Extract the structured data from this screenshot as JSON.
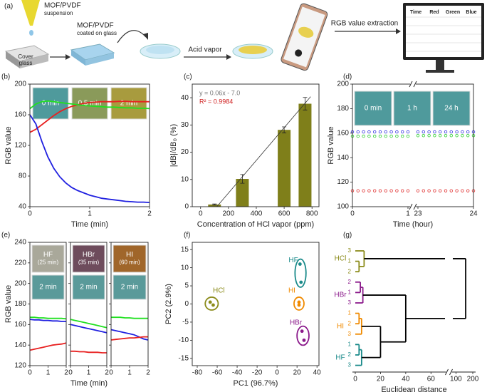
{
  "schematic": {
    "label": "(a)",
    "suspension": [
      "MOF/PVDF",
      "suspension"
    ],
    "coated": [
      "MOF/PVDF",
      "coated on glass"
    ],
    "cover_glass": [
      "Cover",
      "glass"
    ],
    "acid_vapor": "Acid vapor",
    "extraction": "RGB value extraction",
    "table_headers": [
      {
        "text": "Time",
        "color": "#222222"
      },
      {
        "text": "Red",
        "color": "#e01010"
      },
      {
        "text": "Green",
        "color": "#10a010"
      },
      {
        "text": "Blue",
        "color": "#1010e0"
      }
    ]
  },
  "chart_data": [
    {
      "type": "line",
      "label": "(b)",
      "xlabel": "Time (min)",
      "ylabel": "RGB value",
      "xlim": [
        0,
        2
      ],
      "ylim": [
        40,
        200
      ],
      "xticks": [
        0,
        1,
        2
      ],
      "yticks": [
        40,
        80,
        120,
        160,
        200
      ],
      "insets": [
        {
          "label": "0 min",
          "color": "#4f9a9c"
        },
        {
          "label": "0.5 min",
          "color": "#8a9a5a"
        },
        {
          "label": "2 min",
          "color": "#a89b3e"
        }
      ],
      "x": [
        0,
        0.1,
        0.2,
        0.3,
        0.4,
        0.5,
        0.6,
        0.7,
        0.8,
        0.9,
        1,
        1.1,
        1.2,
        1.3,
        1.4,
        1.5,
        1.6,
        1.7,
        1.8,
        1.9,
        2
      ],
      "series": [
        {
          "name": "Red",
          "color": "#e82020",
          "values": [
            137,
            141,
            147,
            153,
            159,
            164,
            168,
            171,
            173,
            175,
            176,
            176.5,
            177,
            177,
            177,
            177.5,
            177.5,
            177,
            177,
            177,
            177
          ]
        },
        {
          "name": "Green",
          "color": "#20e020",
          "values": [
            168,
            174,
            177,
            178,
            177,
            176,
            175,
            174,
            173,
            172,
            171.5,
            171,
            170.5,
            170,
            170,
            169.5,
            169,
            169,
            168.5,
            168.5,
            168
          ]
        },
        {
          "name": "Blue",
          "color": "#2020e0",
          "values": [
            160,
            148,
            125,
            105,
            90,
            79,
            71,
            65,
            61,
            58,
            55,
            53,
            51,
            50,
            49,
            48,
            47,
            46.5,
            46,
            46,
            45.5
          ]
        }
      ]
    },
    {
      "type": "bar",
      "label": "(c)",
      "xlabel": "Concentration of HCl vapor (ppm)",
      "ylabel": "|dB|/dB₀ (%)",
      "xlim": [
        -60,
        850
      ],
      "ylim": [
        0,
        45
      ],
      "xticks": [
        0,
        200,
        400,
        600,
        800
      ],
      "yticks": [
        0,
        10,
        20,
        30,
        40
      ],
      "x": [
        100,
        300,
        600,
        750
      ],
      "values": [
        0.8,
        10.2,
        28.2,
        37.8
      ],
      "errors": [
        0.2,
        1.6,
        1.1,
        2.3
      ],
      "color": "#7f7f1a",
      "fit": {
        "label": "y = 0.06x - 7.0",
        "r2_label": "R² = 0.9984",
        "r2_color": "#d02020",
        "slope": 0.06,
        "intercept": -7.0,
        "x": [
          117,
          790
        ]
      }
    },
    {
      "type": "scatter",
      "label": "(d)",
      "xlabel": "Time (hour)",
      "ylabel": "RGB value",
      "xlim": [
        0,
        24
      ],
      "xbreak": [
        1,
        23
      ],
      "ylim": [
        100,
        200
      ],
      "xticks": [
        0,
        1,
        23,
        24
      ],
      "yticks": [
        100,
        120,
        140,
        160,
        180,
        200
      ],
      "insets": [
        {
          "label": "0 min",
          "color": "#4f9a9c"
        },
        {
          "label": "1 h",
          "color": "#4f9a9c"
        },
        {
          "label": "24 h",
          "color": "#4f9a9c"
        }
      ],
      "x": [
        0,
        0.1,
        0.2,
        0.3,
        0.4,
        0.5,
        0.6,
        0.7,
        0.8,
        0.9,
        1,
        23,
        23.1,
        23.2,
        23.3,
        23.4,
        23.5,
        23.6,
        23.7,
        23.8,
        23.9,
        24
      ],
      "series": [
        {
          "name": "Blue",
          "color": "#3030e0",
          "values": [
            161,
            161,
            161,
            161,
            161,
            161,
            161,
            161,
            161,
            161,
            161,
            161,
            161,
            161,
            161,
            161,
            161,
            161,
            161,
            161,
            161,
            161
          ]
        },
        {
          "name": "Green",
          "color": "#30d030",
          "values": [
            157.5,
            157.5,
            157.5,
            157.5,
            157.5,
            157.5,
            157.5,
            157.5,
            157.5,
            157.5,
            157.5,
            158,
            158,
            158,
            158,
            158,
            158,
            158,
            158,
            158,
            158,
            158
          ]
        },
        {
          "name": "Red",
          "color": "#e03030",
          "values": [
            113,
            113,
            113,
            113,
            113,
            113,
            113,
            113,
            113,
            113,
            113,
            113,
            113,
            113,
            113,
            113,
            113,
            113,
            113,
            113,
            113,
            113
          ]
        }
      ]
    },
    {
      "type": "panels",
      "label": "(e)",
      "xlabel": "Time (min)",
      "ylabel": "RGB value",
      "xlim": [
        0,
        2
      ],
      "ylim": [
        120,
        240
      ],
      "xticks": [
        0,
        1,
        2
      ],
      "yticks": [
        120,
        140,
        160,
        180,
        200,
        220,
        240
      ],
      "x": [
        0,
        0.25,
        0.5,
        0.75,
        1,
        1.25,
        1.5,
        1.75,
        2
      ],
      "panels": [
        {
          "title": "HF",
          "subtitle": "(25 min)",
          "color": "#a9a89a",
          "after": "2 min",
          "after_color": "#5a9a9a",
          "series": [
            {
              "name": "Green",
              "color": "#20e020",
              "values": [
                167,
                167,
                166.5,
                166.5,
                166,
                166,
                166,
                166,
                165.5
              ]
            },
            {
              "name": "Blue",
              "color": "#2020e0",
              "values": [
                165,
                164.5,
                164.5,
                164,
                164,
                163.5,
                163.5,
                163,
                163
              ]
            },
            {
              "name": "Red",
              "color": "#e82020",
              "values": [
                135,
                136,
                137,
                138,
                139,
                140,
                140.5,
                141,
                142
              ]
            }
          ]
        },
        {
          "title": "HBr",
          "subtitle": "(35 min)",
          "color": "#6e4c5c",
          "after": "2 min",
          "after_color": "#5a9a9a",
          "series": [
            {
              "name": "Green",
              "color": "#20e020",
              "values": [
                165,
                164,
                163,
                162,
                161,
                160,
                159,
                158,
                157
              ]
            },
            {
              "name": "Blue",
              "color": "#2020e0",
              "values": [
                160,
                159,
                158,
                157,
                156,
                155,
                154,
                153,
                152
              ]
            },
            {
              "name": "Red",
              "color": "#e82020",
              "values": [
                134,
                134,
                133.5,
                133.5,
                133,
                133,
                133,
                132.5,
                132.5
              ]
            }
          ]
        },
        {
          "title": "HI",
          "subtitle": "(60 min)",
          "color": "#a0662a",
          "after": "2 min",
          "after_color": "#5a9a9a",
          "series": [
            {
              "name": "Green",
              "color": "#20e020",
              "values": [
                167,
                167,
                167,
                166.5,
                166.5,
                166,
                166,
                166,
                166
              ]
            },
            {
              "name": "Blue",
              "color": "#2020e0",
              "values": [
                155,
                154,
                153,
                152,
                151,
                150,
                148,
                146,
                145
              ]
            },
            {
              "name": "Red",
              "color": "#e82020",
              "values": [
                145,
                145.5,
                146,
                146.5,
                147,
                147,
                147.5,
                148,
                148
              ]
            }
          ]
        }
      ]
    },
    {
      "type": "pca",
      "label": "(f)",
      "xlabel": "PC1 (96.7%)",
      "ylabel": "PC2 (2.9%)",
      "xlim": [
        -85,
        42
      ],
      "ylim": [
        -17,
        17
      ],
      "xticks": [
        -80,
        -60,
        -40,
        -20,
        0,
        20,
        40
      ],
      "yticks": [
        -15,
        -10,
        -5,
        0,
        5,
        10,
        15
      ],
      "series": [
        {
          "name": "HCl",
          "color": "#8b8b1a",
          "x": [
            -67,
            -64
          ],
          "values": [
            0.5,
            -0.3
          ]
        },
        {
          "name": "HF",
          "color": "#1a8a8a",
          "x": [
            23,
            24
          ],
          "values": [
            11,
            6
          ]
        },
        {
          "name": "HI",
          "color": "#f08a00",
          "x": [
            22,
            22
          ],
          "values": [
            0.5,
            -0.3
          ]
        },
        {
          "name": "HBr",
          "color": "#8b1a8b",
          "x": [
            25,
            27
          ],
          "values": [
            -7.5,
            -10
          ]
        }
      ]
    },
    {
      "type": "dendrogram",
      "label": "(g)",
      "xlabel": "Euclidean distance",
      "xlim": [
        0,
        200
      ],
      "xbreak": [
        70,
        90
      ],
      "xticks": [
        0,
        20,
        40,
        60,
        100,
        200
      ],
      "tree": {
        "height": 158,
        "children": [
          {
            "name": "HCl",
            "color": "#8b8b1a",
            "height": 7,
            "children": [
              {
                "label": "3"
              },
              {
                "height": 3,
                "children": [
                  {
                    "label": "1"
                  },
                  {
                    "label": "2"
                  }
                ]
              }
            ]
          },
          {
            "height": 40,
            "children": [
              {
                "name": "HBr",
                "color": "#8b1a8b",
                "height": 6,
                "children": [
                  {
                    "height": 4,
                    "children": [
                      {
                        "label": "2"
                      },
                      {
                        "label": "1"
                      }
                    ]
                  },
                  {
                    "label": "3"
                  }
                ]
              },
              {
                "height": 20,
                "children": [
                  {
                    "name": "HI",
                    "color": "#f08a00",
                    "height": 5,
                    "children": [
                      {
                        "height": 3,
                        "children": [
                          {
                            "label": "1"
                          },
                          {
                            "label": "2"
                          }
                        ]
                      },
                      {
                        "label": "3"
                      }
                    ]
                  },
                  {
                    "name": "HF",
                    "color": "#1a8a8a",
                    "height": 5,
                    "children": [
                      {
                        "height": 3,
                        "children": [
                          {
                            "label": "1"
                          },
                          {
                            "label": "2"
                          }
                        ]
                      },
                      {
                        "label": "3"
                      }
                    ]
                  }
                ]
              }
            ]
          }
        ]
      }
    }
  ]
}
